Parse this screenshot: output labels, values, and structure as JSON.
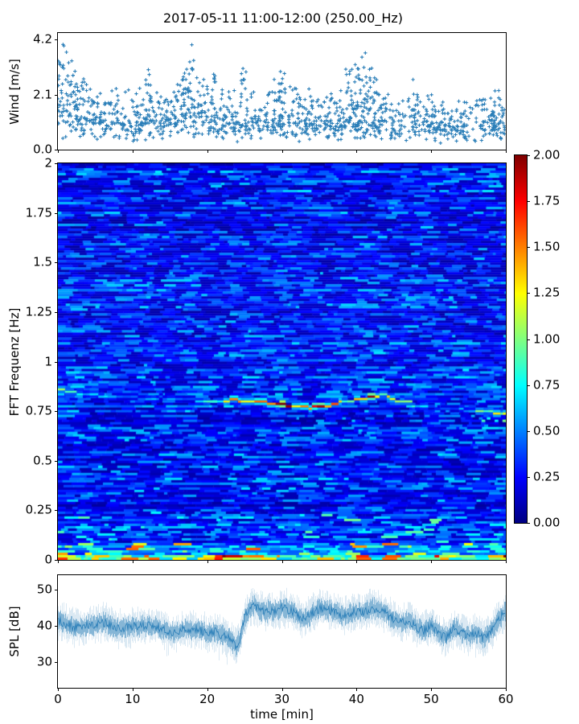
{
  "title": "2017-05-11 11:00-12:00 (250.00_Hz)",
  "xlabel": "time [min]",
  "colors": {
    "series": "#1f77b4",
    "axis": "#000000",
    "background": "#ffffff"
  },
  "x_axis": {
    "range": [
      0,
      60
    ],
    "ticks": [
      {
        "v": 0,
        "label": "0"
      },
      {
        "v": 10,
        "label": "10"
      },
      {
        "v": 20,
        "label": "20"
      },
      {
        "v": 30,
        "label": "30"
      },
      {
        "v": 40,
        "label": "40"
      },
      {
        "v": 50,
        "label": "50"
      },
      {
        "v": 60,
        "label": "60"
      }
    ]
  },
  "panels": {
    "wind": {
      "ylabel": "Wind [m/s]",
      "ylim": [
        0,
        4.45
      ],
      "ticks": [
        {
          "v": 0.0,
          "label": "0.0"
        },
        {
          "v": 2.1,
          "label": "2.1"
        },
        {
          "v": 4.2,
          "label": "4.2"
        }
      ]
    },
    "spectrogram": {
      "ylabel": "FFT Frequenz [Hz]",
      "ylim": [
        0,
        2
      ],
      "ticks": [
        {
          "v": 0,
          "label": "0"
        },
        {
          "v": 0.25,
          "label": "0.25"
        },
        {
          "v": 0.5,
          "label": "0.5"
        },
        {
          "v": 0.75,
          "label": "0.75"
        },
        {
          "v": 1,
          "label": "1"
        },
        {
          "v": 1.25,
          "label": "1.25"
        },
        {
          "v": 1.5,
          "label": "1.5"
        },
        {
          "v": 1.75,
          "label": "1.75"
        },
        {
          "v": 2,
          "label": "2"
        }
      ]
    },
    "colorbar": {
      "range": [
        0,
        2
      ],
      "ticks": [
        {
          "v": 0.0,
          "label": "0.00"
        },
        {
          "v": 0.25,
          "label": "0.25"
        },
        {
          "v": 0.5,
          "label": "0.50"
        },
        {
          "v": 0.75,
          "label": "0.75"
        },
        {
          "v": 1.0,
          "label": "1.00"
        },
        {
          "v": 1.25,
          "label": "1.25"
        },
        {
          "v": 1.5,
          "label": "1.50"
        },
        {
          "v": 1.75,
          "label": "1.75"
        },
        {
          "v": 2.0,
          "label": "2.00"
        }
      ]
    },
    "spl": {
      "ylabel": "SPL [dB]",
      "ylim": [
        23,
        54
      ],
      "ticks": [
        {
          "v": 30,
          "label": "30"
        },
        {
          "v": 40,
          "label": "40"
        },
        {
          "v": 50,
          "label": "50"
        }
      ]
    }
  },
  "chart_data": [
    {
      "type": "scatter",
      "name": "wind_speed",
      "marker": "+",
      "xlabel": "time [min]",
      "ylabel": "Wind [m/s]",
      "xlim": [
        0,
        60
      ],
      "ylim": [
        0,
        4.45
      ],
      "n_points": 1350,
      "mean_profile": [
        [
          0,
          1.5
        ],
        [
          3,
          1.1
        ],
        [
          6,
          1.0
        ],
        [
          9,
          0.95
        ],
        [
          12,
          1.05
        ],
        [
          15,
          0.95
        ],
        [
          18,
          1.3
        ],
        [
          21,
          1.0
        ],
        [
          24,
          0.9
        ],
        [
          27,
          1.0
        ],
        [
          30,
          1.1
        ],
        [
          33,
          0.9
        ],
        [
          36,
          0.9
        ],
        [
          39,
          1.05
        ],
        [
          42,
          1.0
        ],
        [
          45,
          0.85
        ],
        [
          48,
          1.0
        ],
        [
          51,
          0.85
        ],
        [
          54,
          0.8
        ],
        [
          57,
          0.95
        ],
        [
          60,
          1.0
        ]
      ],
      "max_envelope": [
        [
          0,
          4.0
        ],
        [
          1,
          4.05
        ],
        [
          2,
          3.6
        ],
        [
          3,
          3.1
        ],
        [
          4,
          2.5
        ],
        [
          5,
          2.3
        ],
        [
          6,
          2.7
        ],
        [
          7,
          2.9
        ],
        [
          8,
          2.4
        ],
        [
          9,
          2.2
        ],
        [
          10,
          2.6
        ],
        [
          11,
          2.9
        ],
        [
          12,
          3.1
        ],
        [
          13,
          2.6
        ],
        [
          14,
          2.3
        ],
        [
          15,
          2.7
        ],
        [
          16,
          2.5
        ],
        [
          17,
          3.2
        ],
        [
          18,
          4.25
        ],
        [
          19,
          3.6
        ],
        [
          20,
          2.8
        ],
        [
          21,
          3.1
        ],
        [
          22,
          2.6
        ],
        [
          23,
          2.3
        ],
        [
          24,
          2.7
        ],
        [
          25,
          3.3
        ],
        [
          26,
          2.9
        ],
        [
          27,
          2.6
        ],
        [
          28,
          2.4
        ],
        [
          29,
          3.0
        ],
        [
          30,
          3.3
        ],
        [
          31,
          2.7
        ],
        [
          32,
          2.5
        ],
        [
          33,
          2.4
        ],
        [
          34,
          2.6
        ],
        [
          35,
          2.3
        ],
        [
          36,
          2.2
        ],
        [
          37,
          2.5
        ],
        [
          38,
          2.8
        ],
        [
          39,
          3.1
        ],
        [
          40,
          3.4
        ],
        [
          41,
          3.8
        ],
        [
          42,
          3.3
        ],
        [
          43,
          2.7
        ],
        [
          44,
          2.3
        ],
        [
          45,
          2.1
        ],
        [
          46,
          2.4
        ],
        [
          47,
          3.0
        ],
        [
          48,
          3.0
        ],
        [
          49,
          2.5
        ],
        [
          50,
          2.2
        ],
        [
          51,
          2.1
        ],
        [
          52,
          2.6
        ],
        [
          53,
          2.2
        ],
        [
          54,
          2.0
        ],
        [
          55,
          2.1
        ],
        [
          56,
          2.3
        ],
        [
          57,
          2.7
        ],
        [
          58,
          2.7
        ],
        [
          59,
          2.4
        ],
        [
          60,
          2.6
        ]
      ]
    },
    {
      "type": "heatmap",
      "name": "fft_spectrogram",
      "xlabel": "time [min]",
      "ylabel": "FFT Frequenz [Hz]",
      "xlim": [
        0,
        60
      ],
      "ylim": [
        0,
        2
      ],
      "zlim": [
        0,
        2
      ],
      "colormap": "jet",
      "colormap_stops": [
        [
          0.0,
          "#000080"
        ],
        [
          0.125,
          "#0000ff"
        ],
        [
          0.375,
          "#00ffff"
        ],
        [
          0.625,
          "#ffff00"
        ],
        [
          0.875,
          "#ff0000"
        ],
        [
          1.0,
          "#800000"
        ]
      ],
      "background_level_range": [
        0.05,
        0.45
      ],
      "main_band": [
        [
          0,
          0.86,
          1.0
        ],
        [
          1,
          0.855,
          0.8
        ],
        [
          2,
          0.85,
          0.9
        ],
        [
          3,
          0.845,
          0.7
        ],
        [
          4,
          0.84,
          0.6
        ],
        [
          5,
          0.835,
          0.5
        ],
        [
          6,
          0.83,
          0.6
        ],
        [
          7,
          0.83,
          0.5
        ],
        [
          8,
          0.828,
          0.45
        ],
        [
          9,
          0.826,
          0.5
        ],
        [
          10,
          0.825,
          0.6
        ],
        [
          11,
          0.824,
          0.5
        ],
        [
          12,
          0.822,
          0.65
        ],
        [
          13,
          0.82,
          0.5
        ],
        [
          14,
          0.818,
          0.45
        ],
        [
          15,
          0.817,
          0.55
        ],
        [
          16,
          0.815,
          0.6
        ],
        [
          17,
          0.813,
          0.5
        ],
        [
          18,
          0.812,
          0.6
        ],
        [
          19,
          0.81,
          0.7
        ],
        [
          20,
          0.81,
          0.8
        ],
        [
          21,
          0.81,
          0.9
        ],
        [
          22,
          0.81,
          1.1
        ],
        [
          23,
          0.808,
          1.3
        ],
        [
          24,
          0.806,
          1.2
        ],
        [
          25,
          0.805,
          1.5
        ],
        [
          26,
          0.805,
          1.7
        ],
        [
          27,
          0.803,
          1.9
        ],
        [
          28,
          0.8,
          2.0
        ],
        [
          29,
          0.795,
          1.8
        ],
        [
          30,
          0.79,
          1.9
        ],
        [
          31,
          0.783,
          1.6
        ],
        [
          32,
          0.778,
          1.5
        ],
        [
          33,
          0.775,
          1.4
        ],
        [
          34,
          0.778,
          1.7
        ],
        [
          35,
          0.78,
          1.9
        ],
        [
          36,
          0.788,
          1.5
        ],
        [
          37,
          0.795,
          1.2
        ],
        [
          38,
          0.805,
          1.1
        ],
        [
          39,
          0.815,
          1.4
        ],
        [
          40,
          0.825,
          1.7
        ],
        [
          41,
          0.83,
          2.0
        ],
        [
          42,
          0.835,
          1.6
        ],
        [
          43,
          0.833,
          1.1
        ],
        [
          44,
          0.825,
          1.3
        ],
        [
          45,
          0.815,
          1.0
        ],
        [
          46,
          0.8,
          0.8
        ],
        [
          47,
          0.79,
          0.9
        ],
        [
          48,
          0.782,
          0.7
        ],
        [
          49,
          0.778,
          0.5
        ],
        [
          50,
          0.775,
          0.4
        ],
        [
          51,
          0.772,
          0.35
        ],
        [
          52,
          0.77,
          0.4
        ],
        [
          53,
          0.765,
          0.5
        ],
        [
          54,
          0.762,
          0.5
        ],
        [
          55,
          0.76,
          0.7
        ],
        [
          56,
          0.755,
          0.9
        ],
        [
          57,
          0.75,
          1.0
        ],
        [
          58,
          0.747,
          1.1
        ],
        [
          59,
          0.744,
          1.3
        ],
        [
          60,
          0.74,
          1.1
        ]
      ],
      "faint_band": {
        "freq": 1.65,
        "t_range": [
          9.5,
          13.5
        ],
        "intensity": 0.55
      },
      "low_freq_hotspots": [
        [
          0,
          1.6
        ],
        [
          1,
          1.0
        ],
        [
          2,
          0.6
        ],
        [
          4,
          0.9
        ],
        [
          5,
          1.3
        ],
        [
          6,
          0.8
        ],
        [
          8,
          1.5
        ],
        [
          9,
          0.9
        ],
        [
          10,
          1.1
        ],
        [
          12,
          1.4
        ],
        [
          13,
          0.8
        ],
        [
          15,
          1.3
        ],
        [
          16,
          1.0
        ],
        [
          18,
          0.7
        ],
        [
          19,
          1.5
        ],
        [
          20,
          1.2
        ],
        [
          21,
          1.8
        ],
        [
          22,
          2.0
        ],
        [
          23,
          1.9
        ],
        [
          24,
          1.6
        ],
        [
          25,
          1.1
        ],
        [
          26,
          1.3
        ],
        [
          27,
          1.0
        ],
        [
          28,
          1.4
        ],
        [
          29,
          1.2
        ],
        [
          30,
          1.0
        ],
        [
          31,
          0.8
        ],
        [
          33,
          1.1
        ],
        [
          34,
          1.4
        ],
        [
          35,
          1.0
        ],
        [
          36,
          0.8
        ],
        [
          38,
          0.9
        ],
        [
          40,
          1.7
        ],
        [
          41,
          1.4
        ],
        [
          42,
          0.9
        ],
        [
          44,
          1.5
        ],
        [
          45,
          1.1
        ],
        [
          46,
          0.8
        ],
        [
          48,
          0.9
        ],
        [
          50,
          1.3
        ],
        [
          51,
          1.5
        ],
        [
          52,
          1.2
        ],
        [
          54,
          1.0
        ],
        [
          55,
          1.4
        ],
        [
          56,
          0.9
        ],
        [
          57,
          1.6
        ],
        [
          58,
          1.2
        ],
        [
          59,
          1.7
        ],
        [
          60,
          1.9
        ]
      ]
    },
    {
      "type": "line",
      "name": "spl",
      "xlabel": "time [min]",
      "ylabel": "SPL [dB]",
      "xlim": [
        0,
        60
      ],
      "ylim": [
        23,
        54
      ],
      "noise_sd": 2.2,
      "mean_profile": [
        [
          0,
          41
        ],
        [
          1,
          40.5
        ],
        [
          2,
          40.2
        ],
        [
          3,
          40
        ],
        [
          4,
          40.3
        ],
        [
          5,
          40
        ],
        [
          6,
          40.5
        ],
        [
          7,
          40
        ],
        [
          8,
          39.8
        ],
        [
          9,
          40
        ],
        [
          10,
          40
        ],
        [
          11,
          39.6
        ],
        [
          12,
          39.5
        ],
        [
          13,
          39.8
        ],
        [
          14,
          39.4
        ],
        [
          15,
          38.8
        ],
        [
          16,
          38.6
        ],
        [
          17,
          39
        ],
        [
          18,
          38.4
        ],
        [
          19,
          38.6
        ],
        [
          20,
          38
        ],
        [
          21,
          39
        ],
        [
          22,
          37.8
        ],
        [
          23,
          36.2
        ],
        [
          23.8,
          34
        ],
        [
          24.4,
          36
        ],
        [
          25,
          42
        ],
        [
          25.7,
          45
        ],
        [
          26.3,
          46
        ],
        [
          27,
          45
        ],
        [
          28,
          44.4
        ],
        [
          29,
          44
        ],
        [
          30,
          44.6
        ],
        [
          31,
          44
        ],
        [
          32,
          43.2
        ],
        [
          33,
          42.2
        ],
        [
          34,
          44
        ],
        [
          35,
          44.6
        ],
        [
          36,
          44
        ],
        [
          37,
          43.4
        ],
        [
          38,
          43
        ],
        [
          39,
          44
        ],
        [
          40,
          44.4
        ],
        [
          41,
          43.8
        ],
        [
          42,
          44.4
        ],
        [
          43,
          44
        ],
        [
          44,
          43.4
        ],
        [
          45,
          42.2
        ],
        [
          46,
          41.2
        ],
        [
          47,
          42
        ],
        [
          48,
          39.2
        ],
        [
          49,
          38.2
        ],
        [
          50,
          40
        ],
        [
          51,
          38.6
        ],
        [
          52,
          37.2
        ],
        [
          53,
          39.6
        ],
        [
          54,
          38
        ],
        [
          55,
          36.6
        ],
        [
          56,
          38
        ],
        [
          57,
          37
        ],
        [
          58,
          39
        ],
        [
          59,
          42
        ],
        [
          60,
          44
        ]
      ]
    }
  ]
}
